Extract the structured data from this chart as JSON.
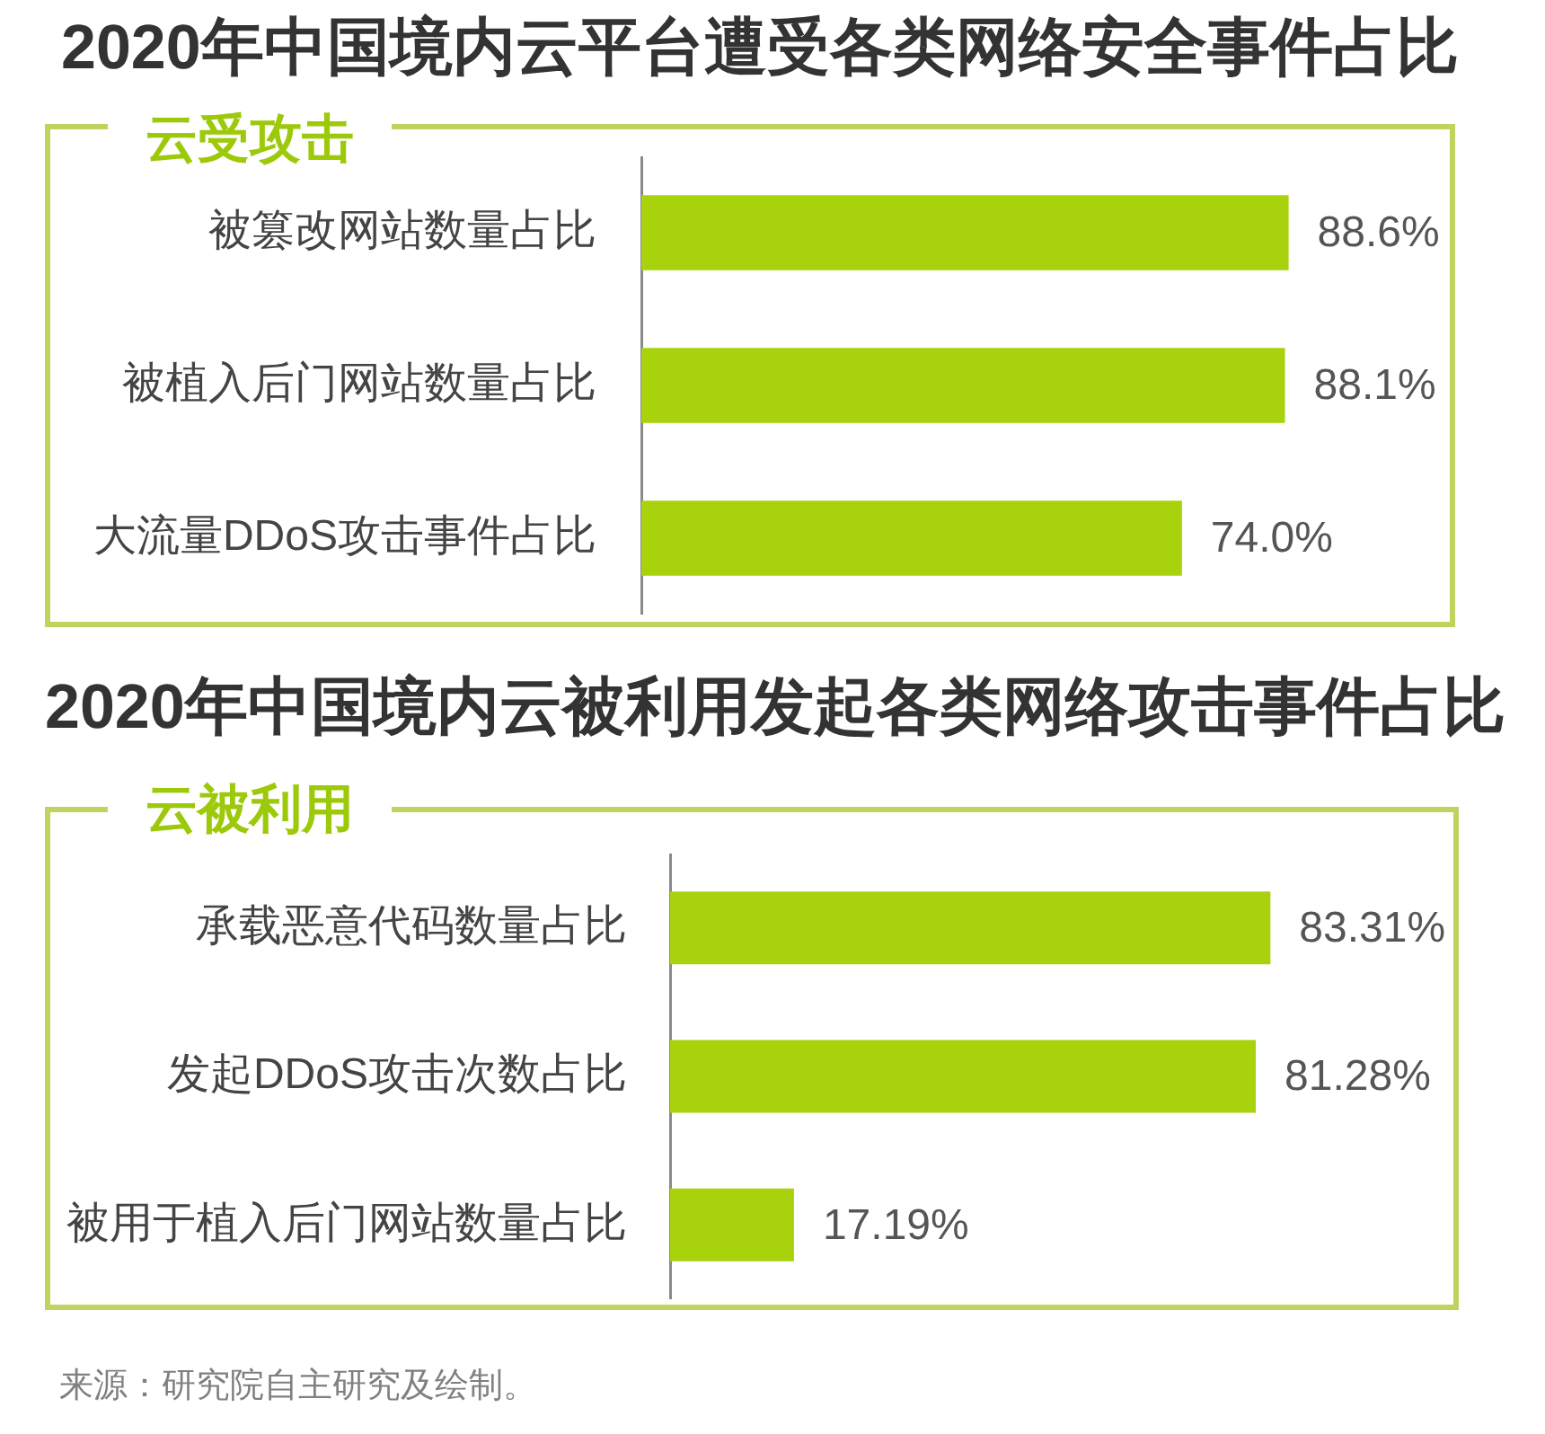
{
  "chart_data": [
    {
      "type": "bar",
      "orientation": "horizontal",
      "title": "2020年中国境内云平台遭受各类网络安全事件占比",
      "subtitle": "云受攻击",
      "categories": [
        "被篡改网站数量占比",
        "被植入后门网站数量占比",
        "大流量DDoS攻击事件占比"
      ],
      "values": [
        88.6,
        88.1,
        74.0
      ],
      "value_labels": [
        "88.6%",
        "88.1%",
        "74.0%"
      ],
      "color": "#a8d20c",
      "tick_labels": "y"
    },
    {
      "type": "bar",
      "orientation": "horizontal",
      "title": "2020年中国境内云被利用发起各类网络攻击事件占比",
      "subtitle": "云被利用",
      "categories": [
        "承载恶意代码数量占比",
        "发起DDoS攻击次数占比",
        "被用于植入后门网站数量占比"
      ],
      "values": [
        83.31,
        81.28,
        17.19
      ],
      "value_labels": [
        "83.31%",
        "81.28%",
        "17.19%"
      ],
      "color": "#a8d20c",
      "tick_labels": "y",
      "annotations": [
        "来源：研究院自主研究及绘制。"
      ]
    }
  ]
}
